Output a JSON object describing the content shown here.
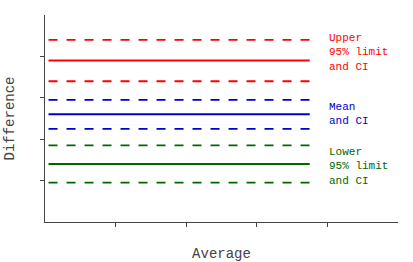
{
  "chart_data": {
    "type": "line",
    "title": "",
    "xlabel": "Average",
    "ylabel": "Difference",
    "x": [
      0.1,
      7.5
    ],
    "series": [
      {
        "color": "#FF0000",
        "line_style": "dashed",
        "values": [
          8.8,
          8.8
        ]
      },
      {
        "color": "#FF0000",
        "line_style": "solid",
        "values": [
          7.8,
          7.8
        ]
      },
      {
        "color": "#FF0000",
        "line_style": "dashed",
        "values": [
          6.8,
          6.8
        ]
      },
      {
        "color": "#0000CC",
        "line_style": "dashed",
        "values": [
          5.9,
          5.9
        ]
      },
      {
        "color": "#0000CC",
        "line_style": "solid",
        "values": [
          5.2,
          5.2
        ]
      },
      {
        "color": "#0000CC",
        "line_style": "dashed",
        "values": [
          4.5,
          4.5
        ]
      },
      {
        "color": "#006600",
        "line_style": "dashed",
        "values": [
          3.7,
          3.7
        ]
      },
      {
        "color": "#006600",
        "line_style": "solid",
        "values": [
          2.8,
          2.8
        ]
      },
      {
        "color": "#006600",
        "line_style": "dashed",
        "values": [
          1.9,
          1.9
        ]
      }
    ],
    "annotations": [
      {
        "text": "Upper\n95% limit\nand CI",
        "color": "#FF0000"
      },
      {
        "text": "Mean\nand CI",
        "color": "#0000CC"
      },
      {
        "text": "Lower\n95% limit\nand CI",
        "color": "#006600"
      }
    ],
    "xlim": [
      0,
      10
    ],
    "ylim": [
      0,
      10
    ],
    "xticks": [
      2,
      4,
      6,
      8
    ],
    "yticks": [
      2,
      4,
      6,
      8
    ],
    "tick_labels": false,
    "grid": false
  }
}
